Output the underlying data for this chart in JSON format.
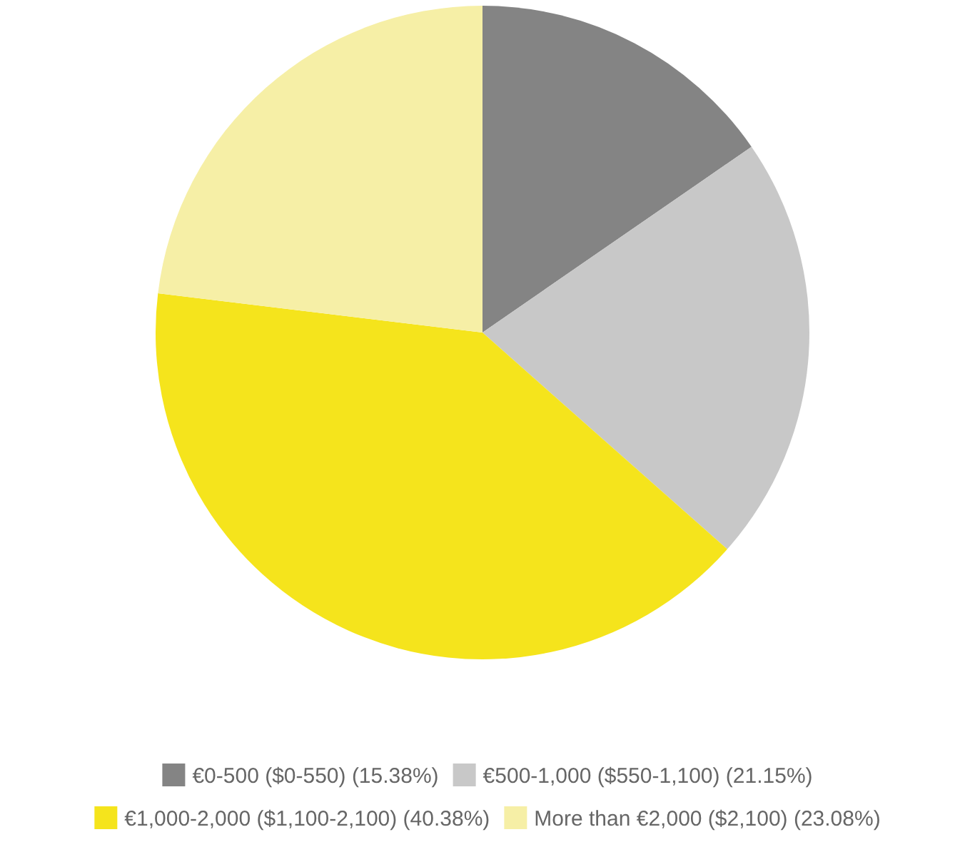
{
  "chart_data": {
    "type": "pie",
    "categories": [
      "€0-500 ($0-550) (15.38%)",
      "€500-1,000 ($550-1,100) (21.15%)",
      "€1,000-2,000 ($1,100-2,100) (40.38%)",
      "More than €2,000 ($2,100) (23.08%)"
    ],
    "values": [
      15.38,
      21.15,
      40.38,
      23.08
    ],
    "colors": [
      "#848484",
      "#c8c8c8",
      "#f5e41c",
      "#f6efa6"
    ],
    "legend": "bottom"
  }
}
